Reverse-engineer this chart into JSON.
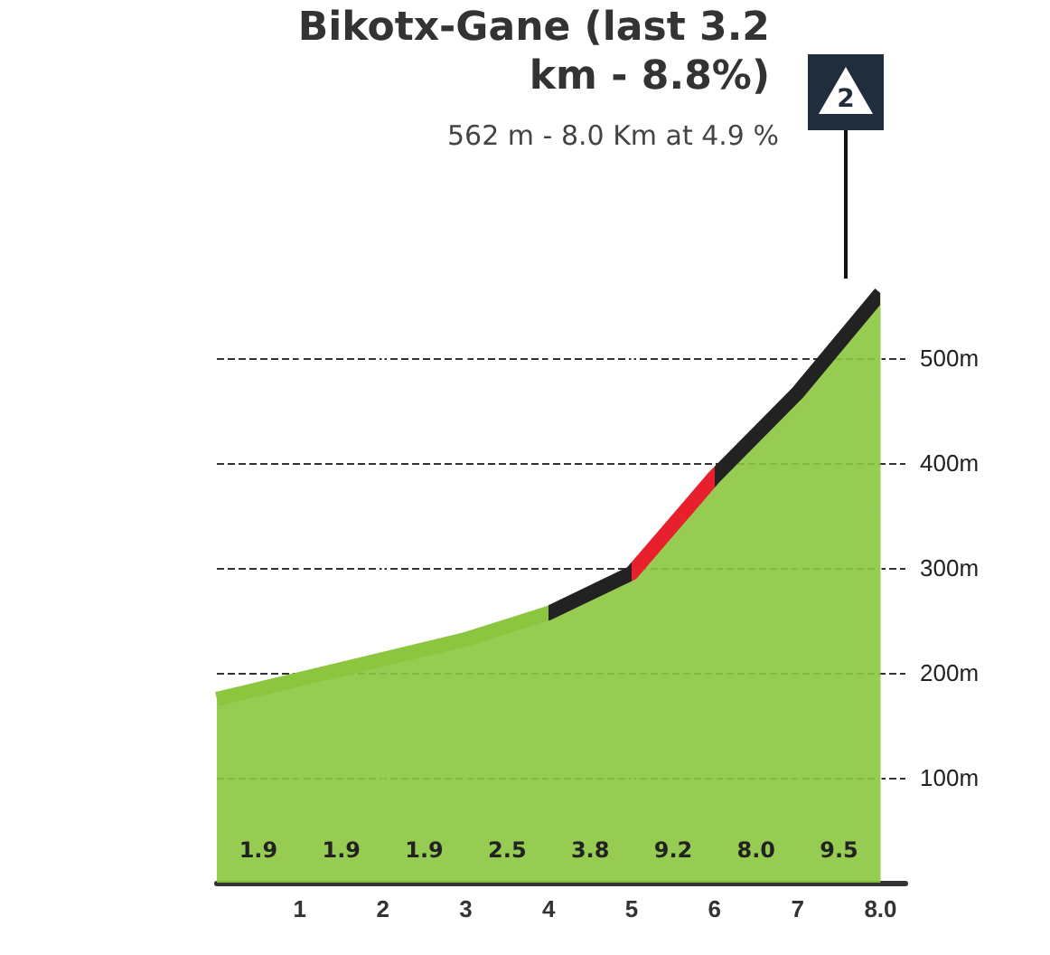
{
  "chart_data": {
    "type": "area",
    "title": "Bikotx-Gane (last 3.2 km - 8.8%)",
    "subtitle": "562 m - 8.0 Km at 4.9 %",
    "x": [
      0,
      1,
      2,
      3,
      4,
      5,
      6,
      7,
      8
    ],
    "values": [
      175,
      194,
      213,
      232,
      257,
      295,
      387,
      467,
      562
    ],
    "color": "#8cc63f",
    "colors": [
      "#8cc63f",
      "#8cc63f",
      "#8cc63f",
      "#8cc63f",
      "#8cc63f",
      "#222222",
      "#e8202e",
      "#222222",
      "#222222"
    ],
    "xlim": [
      0,
      8.3
    ],
    "xticks": [
      1,
      2,
      3,
      4,
      5,
      6,
      7,
      {
        "value": 8,
        "label": "8.0"
      }
    ],
    "ylim": [
      0,
      600
    ],
    "yticks": [
      {
        "value": 100,
        "label": "100m"
      },
      {
        "value": 200,
        "label": "200m"
      },
      {
        "value": 300,
        "label": "300m"
      },
      {
        "value": 400,
        "label": "400m"
      },
      {
        "value": 500,
        "label": "500m"
      }
    ],
    "grid": true,
    "annotations": [
      "2",
      "1.9",
      "1.9",
      "1.9",
      "2.5",
      "3.8",
      "9.2",
      "8.0",
      "9.5"
    ]
  }
}
